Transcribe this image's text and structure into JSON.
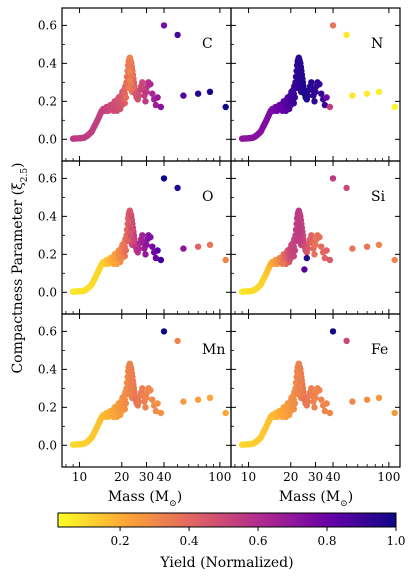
{
  "figure": {
    "ylabel_text": "Compactness Parameter (ξ",
    "ylabel_sub": "2.5",
    "ylabel_close": ")",
    "xlabel_text": "Mass (M",
    "xlabel_sun": "⊙",
    "xlabel_close": ")",
    "colorbar_label": "Yield (Normalized)",
    "colorbar_ticks": [
      "0.2",
      "0.4",
      "0.6",
      "0.8",
      "1.0"
    ],
    "colorbar_tick_values": [
      0.2,
      0.4,
      0.6,
      0.8,
      1.0
    ],
    "colorbar_range": [
      0.02,
      1.0
    ],
    "colormap": "plasma",
    "colormap_stops": [
      "#fcfd26",
      "#fca636",
      "#e16462",
      "#b12a90",
      "#6a00a8",
      "#0d0887"
    ]
  },
  "chart_data": [
    {
      "type": "scatter",
      "panel": "C",
      "xlabel": "Mass (M⊙)",
      "ylabel": "Compactness Parameter (ξ2.5)",
      "xscale": "log",
      "xlim": [
        7.5,
        120
      ],
      "ylim": [
        -0.03,
        0.66
      ],
      "xticks": [
        10,
        20,
        30,
        40,
        100
      ],
      "yticks": [
        0.0,
        0.2,
        0.4,
        0.6
      ],
      "color_rule": {
        "type": "points",
        "points": [
          [
            9,
            0.55
          ],
          [
            15,
            0.52
          ],
          [
            20,
            0.45
          ],
          [
            23,
            0.3
          ],
          [
            25,
            0.45
          ],
          [
            28,
            0.5
          ],
          [
            32,
            0.6
          ],
          [
            40,
            0.75
          ],
          [
            50,
            0.85
          ],
          [
            70,
            0.95
          ],
          [
            110,
            1.0
          ]
        ]
      },
      "highlight_points": [
        [
          40,
          0.6,
          0.75
        ],
        [
          50,
          0.55,
          0.88
        ],
        [
          55,
          0.23,
          0.85
        ],
        [
          70,
          0.24,
          0.95
        ],
        [
          85,
          0.25,
          0.98
        ],
        [
          110,
          0.17,
          1.0
        ]
      ]
    },
    {
      "type": "scatter",
      "panel": "N",
      "xscale": "log",
      "xlim": [
        7.5,
        120
      ],
      "ylim": [
        -0.03,
        0.66
      ],
      "xticks": [
        10,
        20,
        30,
        40,
        100
      ],
      "yticks": [
        0.0,
        0.2,
        0.4,
        0.6
      ],
      "color_rule": {
        "type": "points",
        "points": [
          [
            9,
            0.7
          ],
          [
            15,
            0.75
          ],
          [
            20,
            0.88
          ],
          [
            25,
            0.97
          ],
          [
            30,
            0.92
          ],
          [
            35,
            0.9
          ],
          [
            40,
            0.3
          ],
          [
            60,
            0.05
          ],
          [
            110,
            0.02
          ]
        ]
      },
      "highlight_points": [
        [
          40,
          0.6,
          0.35
        ],
        [
          50,
          0.55,
          0.05
        ],
        [
          55,
          0.23,
          0.05
        ],
        [
          70,
          0.24,
          0.04
        ],
        [
          85,
          0.25,
          0.03
        ],
        [
          110,
          0.17,
          0.02
        ]
      ]
    },
    {
      "type": "scatter",
      "panel": "O",
      "xscale": "log",
      "xlim": [
        7.5,
        120
      ],
      "ylim": [
        -0.03,
        0.66
      ],
      "xticks": [
        10,
        20,
        30,
        40,
        100
      ],
      "yticks": [
        0.0,
        0.2,
        0.4,
        0.6
      ],
      "color_rule": {
        "type": "points",
        "points": [
          [
            9,
            0.05
          ],
          [
            15,
            0.1
          ],
          [
            20,
            0.3
          ],
          [
            25,
            0.55
          ],
          [
            30,
            0.7
          ],
          [
            35,
            0.8
          ],
          [
            40,
            0.95
          ],
          [
            50,
            0.7
          ],
          [
            70,
            0.4
          ],
          [
            110,
            0.3
          ]
        ]
      },
      "highlight_points": [
        [
          40,
          0.6,
          1.0
        ],
        [
          50,
          0.55,
          0.95
        ],
        [
          55,
          0.23,
          0.7
        ],
        [
          70,
          0.24,
          0.4
        ],
        [
          85,
          0.25,
          0.35
        ],
        [
          110,
          0.17,
          0.3
        ]
      ]
    },
    {
      "type": "scatter",
      "panel": "Si",
      "xscale": "log",
      "xlim": [
        7.5,
        120
      ],
      "ylim": [
        -0.03,
        0.66
      ],
      "xticks": [
        10,
        20,
        30,
        40,
        100
      ],
      "yticks": [
        0.0,
        0.2,
        0.4,
        0.6
      ],
      "color_rule": {
        "type": "points",
        "points": [
          [
            9,
            0.05
          ],
          [
            13,
            0.1
          ],
          [
            17,
            0.3
          ],
          [
            20,
            0.5
          ],
          [
            23,
            0.55
          ],
          [
            26,
            0.45
          ],
          [
            30,
            0.35
          ],
          [
            40,
            0.45
          ],
          [
            60,
            0.35
          ],
          [
            110,
            0.3
          ]
        ]
      },
      "highlight_points": [
        [
          26,
          0.18,
          0.95
        ],
        [
          25,
          0.12,
          0.85
        ],
        [
          40,
          0.6,
          0.55
        ],
        [
          50,
          0.55,
          0.5
        ],
        [
          55,
          0.23,
          0.35
        ],
        [
          70,
          0.24,
          0.35
        ],
        [
          85,
          0.25,
          0.3
        ],
        [
          110,
          0.17,
          0.3
        ]
      ]
    },
    {
      "type": "scatter",
      "panel": "Mn",
      "xscale": "log",
      "xlim": [
        7.5,
        120
      ],
      "ylim": [
        -0.03,
        0.66
      ],
      "xticks": [
        10,
        20,
        30,
        40,
        100
      ],
      "yticks": [
        0.0,
        0.2,
        0.4,
        0.6
      ],
      "color_rule": {
        "type": "points",
        "points": [
          [
            9,
            0.08
          ],
          [
            15,
            0.15
          ],
          [
            20,
            0.25
          ],
          [
            25,
            0.35
          ],
          [
            30,
            0.3
          ],
          [
            40,
            0.25
          ],
          [
            60,
            0.22
          ],
          [
            110,
            0.2
          ]
        ]
      },
      "highlight_points": [
        [
          40,
          0.6,
          1.0
        ],
        [
          50,
          0.55,
          0.3
        ],
        [
          55,
          0.23,
          0.25
        ],
        [
          70,
          0.24,
          0.22
        ],
        [
          85,
          0.25,
          0.2
        ],
        [
          110,
          0.17,
          0.2
        ]
      ]
    },
    {
      "type": "scatter",
      "panel": "Fe",
      "xscale": "log",
      "xlim": [
        7.5,
        120
      ],
      "ylim": [
        -0.03,
        0.66
      ],
      "xticks": [
        10,
        20,
        30,
        40,
        100
      ],
      "yticks": [
        0.0,
        0.2,
        0.4,
        0.6
      ],
      "color_rule": {
        "type": "points",
        "points": [
          [
            9,
            0.08
          ],
          [
            15,
            0.15
          ],
          [
            20,
            0.25
          ],
          [
            25,
            0.35
          ],
          [
            30,
            0.3
          ],
          [
            40,
            0.3
          ],
          [
            60,
            0.27
          ],
          [
            110,
            0.25
          ]
        ]
      },
      "highlight_points": [
        [
          40,
          0.6,
          1.0
        ],
        [
          50,
          0.55,
          0.5
        ],
        [
          55,
          0.23,
          0.3
        ],
        [
          70,
          0.24,
          0.27
        ],
        [
          85,
          0.25,
          0.25
        ],
        [
          110,
          0.17,
          0.25
        ]
      ]
    }
  ],
  "mass_compactness": {
    "description_none": "",
    "main_points": [
      [
        9.0,
        0.003
      ],
      [
        9.2,
        0.004
      ],
      [
        9.4,
        0.004
      ],
      [
        9.6,
        0.005
      ],
      [
        9.8,
        0.005
      ],
      [
        10.0,
        0.006
      ],
      [
        10.2,
        0.006
      ],
      [
        10.4,
        0.007
      ],
      [
        10.6,
        0.008
      ],
      [
        10.8,
        0.009
      ],
      [
        11.0,
        0.012
      ],
      [
        11.2,
        0.016
      ],
      [
        11.4,
        0.02
      ],
      [
        11.6,
        0.025
      ],
      [
        11.8,
        0.03
      ],
      [
        12.0,
        0.035
      ],
      [
        12.2,
        0.04
      ],
      [
        12.4,
        0.05
      ],
      [
        12.6,
        0.06
      ],
      [
        12.8,
        0.07
      ],
      [
        13.0,
        0.08
      ],
      [
        13.2,
        0.09
      ],
      [
        13.4,
        0.1
      ],
      [
        13.6,
        0.11
      ],
      [
        13.8,
        0.12
      ],
      [
        14.0,
        0.13
      ],
      [
        14.2,
        0.14
      ],
      [
        14.4,
        0.15
      ],
      [
        14.6,
        0.15
      ],
      [
        14.8,
        0.16
      ],
      [
        15.0,
        0.16
      ],
      [
        15.2,
        0.15
      ],
      [
        15.4,
        0.16
      ],
      [
        15.6,
        0.17
      ],
      [
        15.8,
        0.16
      ],
      [
        16.0,
        0.15
      ],
      [
        16.2,
        0.16
      ],
      [
        16.4,
        0.17
      ],
      [
        16.6,
        0.18
      ],
      [
        16.8,
        0.17
      ],
      [
        17.0,
        0.16
      ],
      [
        17.2,
        0.18
      ],
      [
        17.4,
        0.17
      ],
      [
        17.6,
        0.19
      ],
      [
        17.8,
        0.2
      ],
      [
        18.0,
        0.17
      ],
      [
        18.2,
        0.19
      ],
      [
        18.4,
        0.2
      ],
      [
        18.6,
        0.18
      ],
      [
        18.8,
        0.21
      ],
      [
        19.0,
        0.22
      ],
      [
        19.2,
        0.2
      ],
      [
        19.4,
        0.19
      ],
      [
        19.6,
        0.22
      ],
      [
        19.8,
        0.23
      ],
      [
        20.0,
        0.21
      ],
      [
        20.2,
        0.25
      ],
      [
        20.4,
        0.23
      ],
      [
        20.6,
        0.2
      ],
      [
        20.8,
        0.26
      ],
      [
        21.0,
        0.24
      ],
      [
        21.2,
        0.28
      ],
      [
        21.4,
        0.22
      ],
      [
        21.6,
        0.3
      ],
      [
        21.8,
        0.33
      ],
      [
        22.0,
        0.36
      ],
      [
        22.2,
        0.39
      ],
      [
        22.4,
        0.41
      ],
      [
        22.6,
        0.42
      ],
      [
        22.8,
        0.43
      ],
      [
        23.0,
        0.42
      ],
      [
        23.2,
        0.41
      ],
      [
        23.4,
        0.4
      ],
      [
        23.6,
        0.38
      ],
      [
        23.8,
        0.36
      ],
      [
        24.0,
        0.34
      ],
      [
        24.2,
        0.32
      ],
      [
        24.4,
        0.3
      ],
      [
        24.6,
        0.28
      ],
      [
        24.8,
        0.26
      ],
      [
        22.5,
        0.37
      ],
      [
        23.0,
        0.35
      ],
      [
        23.5,
        0.33
      ],
      [
        22.8,
        0.31
      ],
      [
        23.3,
        0.29
      ],
      [
        24.0,
        0.27
      ],
      [
        22.3,
        0.27
      ],
      [
        23.7,
        0.25
      ],
      [
        25.0,
        0.24
      ],
      [
        25.5,
        0.22
      ],
      [
        26.0,
        0.21
      ],
      [
        26.5,
        0.23
      ],
      [
        27.0,
        0.26
      ],
      [
        27.5,
        0.28
      ],
      [
        28.0,
        0.3
      ],
      [
        28.5,
        0.26
      ],
      [
        29.0,
        0.23
      ],
      [
        29.5,
        0.2
      ],
      [
        30.0,
        0.25
      ],
      [
        30.5,
        0.28
      ],
      [
        31.0,
        0.3
      ],
      [
        32.0,
        0.29
      ],
      [
        33.0,
        0.24
      ],
      [
        34.0,
        0.21
      ],
      [
        35.0,
        0.18
      ],
      [
        36.0,
        0.22
      ],
      [
        38.0,
        0.17
      ],
      [
        21.0,
        0.19
      ],
      [
        20.0,
        0.18
      ],
      [
        19.5,
        0.16
      ],
      [
        18.5,
        0.15
      ],
      [
        17.5,
        0.15
      ]
    ]
  }
}
